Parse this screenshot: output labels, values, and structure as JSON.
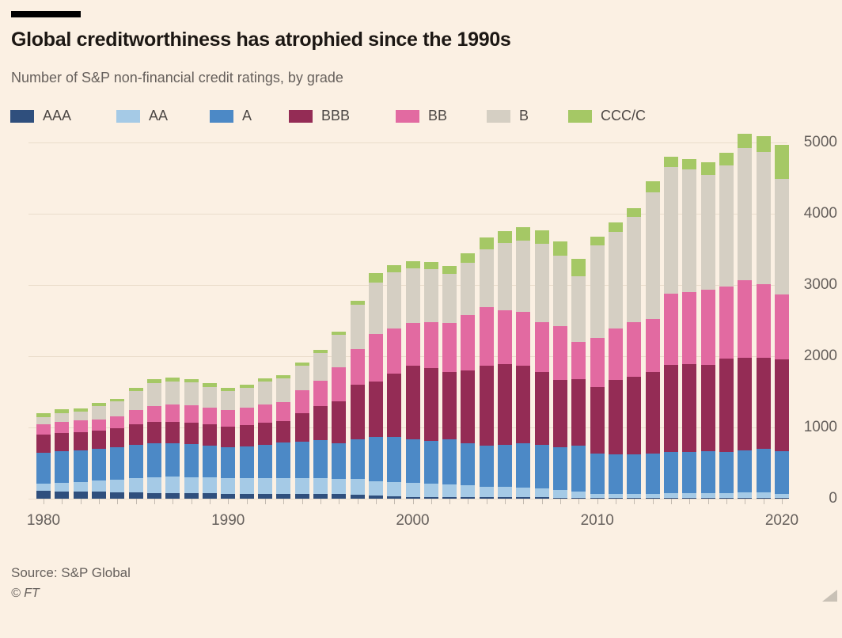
{
  "header": {
    "title": "Global creditworthiness has atrophied since the 1990s",
    "subtitle": "Number of S&P non-financial credit ratings, by grade"
  },
  "footer": {
    "source": "Source: S&P Global",
    "copyright": "© FT"
  },
  "colors": {
    "background": "#FBF0E3",
    "title_text": "#1C1713",
    "secondary_text": "#66605C",
    "legend_text": "#4D4845",
    "gridline": "#EADCCB",
    "axis_tick": "#C3BAB0",
    "top_bar": "#000000",
    "resize_handle": "#C9C1B6"
  },
  "chart_data": {
    "type": "bar",
    "stacked": true,
    "title": "Global creditworthiness has atrophied since the 1990s",
    "subtitle": "Number of S&P non-financial credit ratings, by grade",
    "legend_position": "top",
    "grid": "horizontal",
    "ylim": [
      0,
      5000
    ],
    "yticks": [
      0,
      1000,
      2000,
      3000,
      4000,
      5000
    ],
    "x_axis_labeled_ticks": [
      1980,
      1990,
      2000,
      2010,
      2020
    ],
    "x": [
      1980,
      1981,
      1982,
      1983,
      1984,
      1985,
      1986,
      1987,
      1988,
      1989,
      1990,
      1991,
      1992,
      1993,
      1994,
      1995,
      1996,
      1997,
      1998,
      1999,
      2000,
      2001,
      2002,
      2003,
      2004,
      2005,
      2006,
      2007,
      2008,
      2009,
      2010,
      2011,
      2012,
      2013,
      2014,
      2015,
      2016,
      2017,
      2018,
      2019,
      2020
    ],
    "series": [
      {
        "name": "AAA",
        "color": "#2F4F7D",
        "values": [
          110,
          105,
          100,
          95,
          90,
          85,
          80,
          80,
          75,
          75,
          70,
          70,
          70,
          70,
          70,
          70,
          70,
          60,
          40,
          30,
          25,
          25,
          25,
          25,
          22,
          22,
          20,
          18,
          15,
          12,
          8,
          8,
          8,
          8,
          8,
          8,
          8,
          8,
          8,
          8,
          8
        ]
      },
      {
        "name": "AA",
        "color": "#A5CAE6",
        "values": [
          100,
          115,
          130,
          160,
          180,
          205,
          225,
          235,
          230,
          220,
          215,
          215,
          215,
          215,
          215,
          215,
          210,
          215,
          205,
          200,
          195,
          185,
          180,
          165,
          145,
          140,
          135,
          130,
          110,
          90,
          55,
          55,
          55,
          55,
          75,
          75,
          75,
          75,
          80,
          80,
          60
        ]
      },
      {
        "name": "A",
        "color": "#4C89C6",
        "values": [
          440,
          445,
          445,
          450,
          455,
          465,
          470,
          465,
          460,
          450,
          440,
          450,
          470,
          500,
          520,
          535,
          500,
          560,
          625,
          640,
          615,
          605,
          630,
          590,
          575,
          595,
          620,
          610,
          595,
          640,
          575,
          560,
          560,
          575,
          575,
          575,
          585,
          575,
          590,
          610,
          600
        ]
      },
      {
        "name": "BBB",
        "color": "#942C55",
        "values": [
          250,
          255,
          260,
          250,
          265,
          290,
          305,
          300,
          300,
          295,
          290,
          300,
          315,
          305,
          390,
          480,
          585,
          760,
          780,
          890,
          1035,
          1020,
          945,
          1020,
          1125,
          1130,
          1090,
          1020,
          945,
          940,
          930,
          1040,
          1085,
          1135,
          1220,
          1230,
          1210,
          1310,
          1305,
          1275,
          1285
        ]
      },
      {
        "name": "BB",
        "color": "#E26AA1",
        "values": [
          145,
          155,
          160,
          160,
          170,
          195,
          220,
          245,
          245,
          240,
          230,
          240,
          255,
          265,
          330,
          355,
          475,
          505,
          665,
          630,
          595,
          645,
          685,
          780,
          820,
          760,
          760,
          700,
          760,
          520,
          690,
          725,
          775,
          750,
          995,
          1010,
          1050,
          1015,
          1085,
          1035,
          910
        ]
      },
      {
        "name": "B",
        "color": "#D5CFC3",
        "values": [
          100,
          125,
          130,
          190,
          205,
          270,
          320,
          320,
          320,
          290,
          270,
          280,
          320,
          330,
          340,
          385,
          455,
          625,
          720,
          790,
          770,
          745,
          690,
          730,
          810,
          940,
          1000,
          1105,
          985,
          925,
          1300,
          1360,
          1470,
          1780,
          1785,
          1725,
          1620,
          1695,
          1855,
          1860,
          1630
        ]
      },
      {
        "name": "CCC/C",
        "color": "#A5C865",
        "values": [
          60,
          55,
          40,
          35,
          40,
          45,
          55,
          55,
          50,
          50,
          45,
          45,
          45,
          50,
          48,
          45,
          50,
          48,
          135,
          100,
          95,
          100,
          110,
          130,
          165,
          170,
          190,
          185,
          200,
          240,
          120,
          130,
          130,
          150,
          140,
          140,
          175,
          175,
          205,
          225,
          475
        ]
      }
    ]
  }
}
